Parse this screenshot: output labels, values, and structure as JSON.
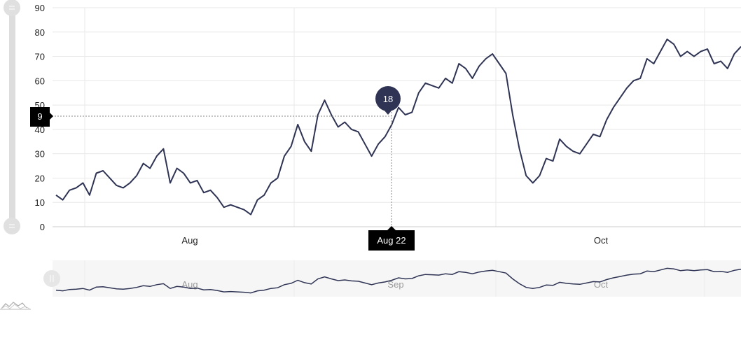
{
  "chart_data": {
    "type": "line",
    "ylim": [
      0,
      90
    ],
    "y_ticks": [
      "0",
      "10",
      "20",
      "30",
      "40",
      "50",
      "60",
      "70",
      "80",
      "90"
    ],
    "x_labels": [
      "Aug",
      "Oct"
    ],
    "grid": true,
    "series": [
      {
        "color": "#2f3454",
        "values": [
          13,
          11,
          15,
          16,
          18,
          13,
          22,
          23,
          20,
          17,
          16,
          18,
          21,
          26,
          24,
          29,
          32,
          18,
          24,
          22,
          18,
          19,
          14,
          15,
          12,
          8,
          9,
          8,
          7,
          5,
          11,
          13,
          18,
          20,
          29,
          33,
          42,
          35,
          31,
          46,
          52,
          46,
          41,
          43,
          40,
          39,
          34,
          29,
          34,
          37,
          42,
          49,
          46,
          47,
          55,
          59,
          58,
          57,
          61,
          59,
          67,
          65,
          61,
          66,
          69,
          71,
          67,
          63,
          46,
          32,
          21,
          18,
          21,
          28,
          27,
          36,
          33,
          31,
          30,
          34,
          38,
          37,
          44,
          49,
          53,
          57,
          60,
          61,
          69,
          67,
          72,
          77,
          75,
          70,
          72,
          70,
          72,
          73,
          67,
          68,
          65,
          71,
          74
        ]
      }
    ],
    "cursor": {
      "value_label": "9",
      "point_label": "18",
      "date_label": "Aug 22"
    },
    "navigator": {
      "labels": [
        "Aug",
        "Sep",
        "Oct"
      ]
    }
  },
  "icons": {
    "scrollbar_grip": "grip-lines-icon",
    "navigator_grip": "grip-lines-icon",
    "series_thumbnail": "line-thumbnail-icon"
  }
}
